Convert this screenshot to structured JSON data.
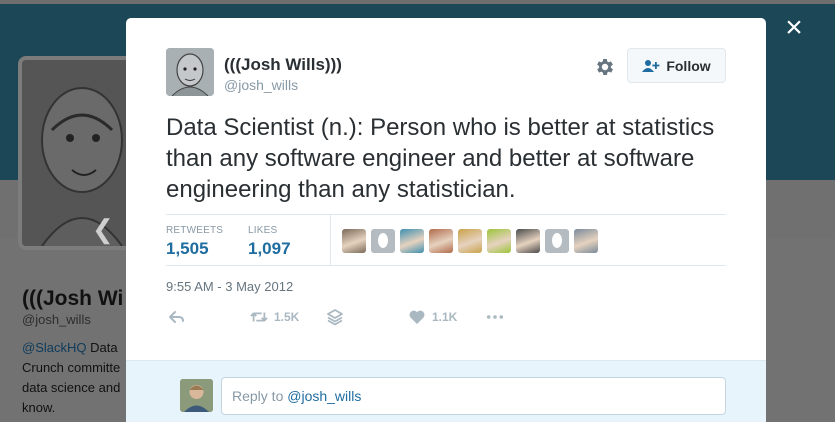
{
  "background_profile": {
    "name": "(((Josh Wi",
    "handle": "@josh_wills",
    "bio_link": "@SlackHQ",
    "bio_line1_rest": " Data",
    "bio_line2": "Crunch committe",
    "bio_line3": "data science and",
    "bio_line4": "know."
  },
  "modal": {
    "close_icon": "×",
    "author": {
      "name": "(((Josh Wills)))",
      "handle": "@josh_wills"
    },
    "follow_label": "Follow",
    "tweet_text": "Data Scientist (n.): Person who is better at statistics than any software engineer and better at software engineering than any statistician.",
    "stats": {
      "retweets_label": "RETWEETS",
      "retweets_value": "1,505",
      "likes_label": "LIKES",
      "likes_value": "1,097"
    },
    "likers": [
      "photo",
      "egg",
      "photo",
      "photo",
      "photo",
      "photo",
      "photo",
      "egg",
      "photo"
    ],
    "timestamp": "9:55 AM - 3 May 2012",
    "actions": {
      "retweet_count": "1.5K",
      "like_count": "1.1K"
    },
    "reply": {
      "prefix": "Reply to ",
      "mention": "@josh_wills"
    }
  },
  "colors": {
    "link": "#1e6ca0",
    "muted": "#8899a6",
    "text": "#292f33",
    "banner": "#1c4757"
  }
}
